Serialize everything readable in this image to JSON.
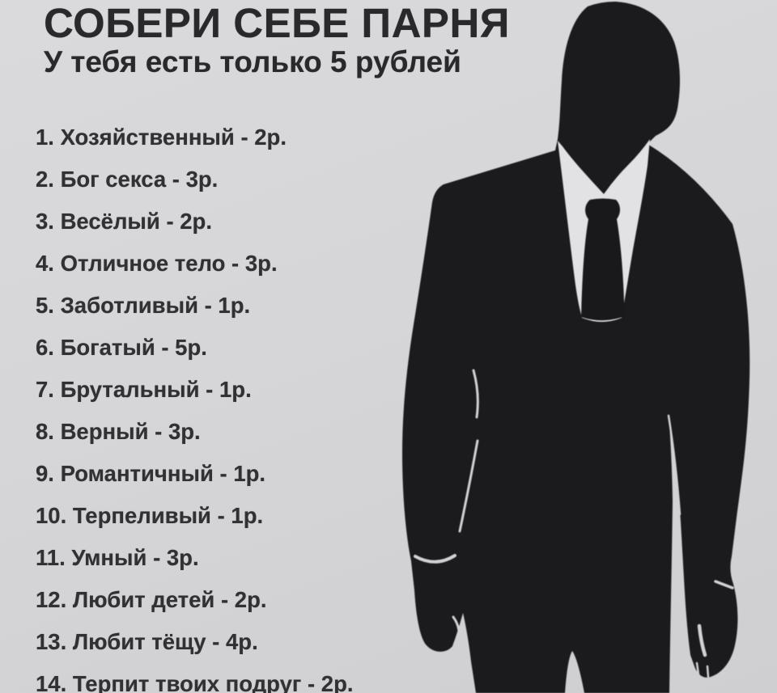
{
  "poster": {
    "title_line1": "СОБЕРИ СЕБЕ ПАРНЯ",
    "title_line2": "У тебя есть только 5 рублей",
    "number_suffix": ". ",
    "separator": " - ",
    "items": [
      {
        "number": "1",
        "trait": "Хозяйственный",
        "price": "2р."
      },
      {
        "number": "2",
        "trait": "Бог секса",
        "price": "3р."
      },
      {
        "number": "3",
        "trait": "Весёлый",
        "price": "2р."
      },
      {
        "number": "4",
        "trait": "Отличное тело",
        "price": "3р."
      },
      {
        "number": "5",
        "trait": "Заботливый",
        "price": "1р."
      },
      {
        "number": "6",
        "trait": "Богатый",
        "price": "5р."
      },
      {
        "number": "7",
        "trait": "Брутальный",
        "price": "1р."
      },
      {
        "number": "8",
        "trait": "Верный",
        "price": "3р."
      },
      {
        "number": "9",
        "trait": "Романтичный",
        "price": "1р."
      },
      {
        "number": "10",
        "trait": "Терпеливый",
        "price": "1р."
      },
      {
        "number": "11",
        "trait": "Умный",
        "price": "3р."
      },
      {
        "number": "12",
        "trait": "Любит детей",
        "price": "2р."
      },
      {
        "number": "13",
        "trait": "Любит тёщу",
        "price": "4р."
      },
      {
        "number": "14",
        "trait": "Терпит твоих подруг",
        "price": "2р."
      }
    ],
    "figure": {
      "icon": "man-in-suit-silhouette"
    },
    "colors": {
      "background": "#d6d6d8",
      "title_text": "#29292d",
      "list_text": "#313135",
      "silhouette": "#1b1b1d",
      "shirt": "#e2e2e4"
    }
  }
}
